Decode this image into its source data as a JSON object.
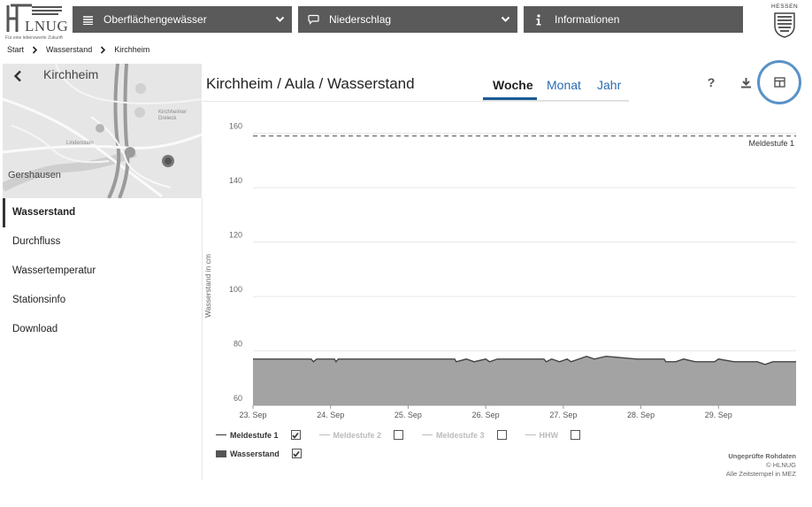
{
  "header": {
    "logo_word": "LNUG",
    "logo_tagline": "Für eine lebenswerte Zukunft",
    "nav": [
      {
        "label": "Oberflächengewässer",
        "icon": "waves-icon"
      },
      {
        "label": "Niederschlag",
        "icon": "chat-bubble-icon"
      },
      {
        "label": "Informationen",
        "icon": "info-icon"
      }
    ],
    "state_logo_text": "HESSEN"
  },
  "breadcrumb": [
    "Start",
    "Wasserstand",
    "Kirchheim"
  ],
  "sidebar": {
    "map_title": "Kirchheim",
    "map_labels": {
      "dreieck": "Kirchheimer Dreieck",
      "town_1": "Lindenstein",
      "town_main": "Gershausen"
    },
    "menu": [
      {
        "label": "Wasserstand",
        "active": true
      },
      {
        "label": "Durchfluss",
        "active": false
      },
      {
        "label": "Wassertemperatur",
        "active": false
      },
      {
        "label": "Stationsinfo",
        "active": false
      },
      {
        "label": "Download",
        "active": false
      }
    ]
  },
  "main": {
    "title": "Kirchheim / Aula / Wasserstand",
    "tabs": [
      "Woche",
      "Monat",
      "Jahr"
    ],
    "active_tab": "Woche",
    "tools": {
      "help": "?"
    }
  },
  "legend": {
    "items": [
      {
        "label": "Meldestufe 1",
        "checked": true,
        "enabled": true
      },
      {
        "label": "Meldestufe 2",
        "checked": false,
        "enabled": false
      },
      {
        "label": "Meldestufe 3",
        "checked": false,
        "enabled": false
      },
      {
        "label": "HHW",
        "checked": false,
        "enabled": false
      }
    ],
    "series": {
      "label": "Wasserstand",
      "checked": true
    }
  },
  "footnote": {
    "line1": "Ungeprüfte Rohdaten",
    "line2": "© HLNUG",
    "line3": "Alle Zeitstempel in MEZ"
  },
  "colors": {
    "nav_bg": "#5a5a5a",
    "accent": "#1a5a96",
    "highlight": "#5a92c8",
    "area": "#a3a3a3"
  },
  "chart_data": {
    "type": "area",
    "title": "",
    "ylabel": "Wasserstand in cm",
    "ylim": [
      60,
      170
    ],
    "yticks": [
      60,
      80,
      100,
      120,
      140,
      160
    ],
    "x": [
      "23. Sep",
      "24. Sep",
      "25. Sep",
      "26. Sep",
      "27. Sep",
      "28. Sep",
      "29. Sep"
    ],
    "xrange_days": 7,
    "series": [
      {
        "name": "Wasserstand",
        "type": "area",
        "points": [
          [
            0.0,
            77
          ],
          [
            0.75,
            77
          ],
          [
            0.78,
            76
          ],
          [
            0.82,
            77
          ],
          [
            1.05,
            77
          ],
          [
            1.07,
            76
          ],
          [
            1.1,
            77
          ],
          [
            2.6,
            77
          ],
          [
            2.62,
            76
          ],
          [
            2.75,
            77
          ],
          [
            2.85,
            76
          ],
          [
            3.0,
            77
          ],
          [
            3.05,
            76
          ],
          [
            3.15,
            77
          ],
          [
            3.3,
            77
          ],
          [
            3.75,
            77
          ],
          [
            3.78,
            76
          ],
          [
            3.85,
            77
          ],
          [
            3.95,
            76
          ],
          [
            4.05,
            77
          ],
          [
            4.1,
            76
          ],
          [
            4.2,
            77
          ],
          [
            4.3,
            78
          ],
          [
            4.4,
            77
          ],
          [
            4.55,
            78
          ],
          [
            4.95,
            77
          ],
          [
            5.3,
            77
          ],
          [
            5.32,
            76
          ],
          [
            5.45,
            76
          ],
          [
            5.55,
            77
          ],
          [
            5.7,
            76
          ],
          [
            5.85,
            76
          ],
          [
            5.95,
            76
          ],
          [
            6.0,
            77
          ],
          [
            6.2,
            76
          ],
          [
            6.3,
            76
          ],
          [
            6.5,
            76
          ],
          [
            6.6,
            75
          ],
          [
            6.7,
            76
          ],
          [
            7.0,
            76
          ]
        ]
      }
    ],
    "thresholds": [
      {
        "name": "Meldestufe 1",
        "value": 159
      }
    ],
    "grid": true
  }
}
